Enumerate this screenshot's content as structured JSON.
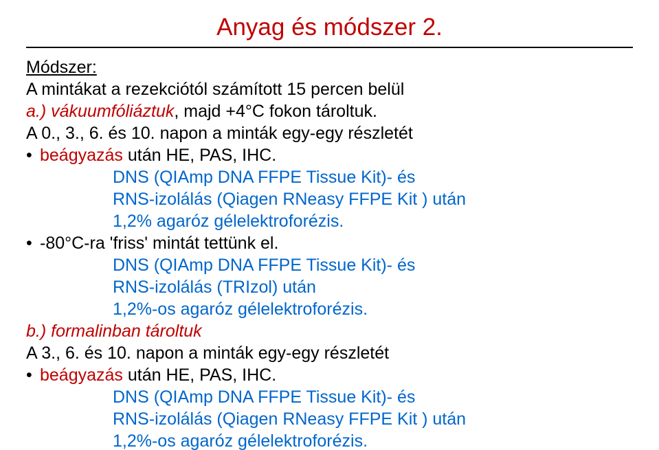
{
  "colors": {
    "accent": "#c00000",
    "link": "#0066cc",
    "text": "#000000",
    "background": "#ffffff",
    "rule": "#000000"
  },
  "title": "Anyag és módszer 2.",
  "section_header": "Módszer:",
  "p1": "A mintákat a rezekciótól számított 15 percen belül",
  "p2_a": "a.) vákuumfóliáztuk",
  "p2_b": ", majd +4°C fokon tároltuk.",
  "p3": "A 0., 3., 6. és 10. napon a minták egy-egy részletét",
  "b1_red": "beágyazás",
  "b1_rest": " után HE, PAS, IHC.",
  "sub1_l1": "DNS (QIAmp DNA FFPE Tissue Kit)- és",
  "sub1_l2": "RNS-izolálás (Qiagen RNeasy FFPE Kit ) után",
  "sub1_l3": "1,2% agaróz gélelektroforézis.",
  "b2": "-80°C-ra 'friss' mintát tettünk el.",
  "sub2_l1": "DNS (QIAmp DNA FFPE Tissue Kit)- és",
  "sub2_l2": "RNS-izolálás (TRIzol) után",
  "sub2_l3": "1,2%-os agaróz gélelektroforézis.",
  "p4_a": "b.) formalinban tároltuk",
  "p5": "A 3., 6. és 10. napon a minták egy-egy részletét",
  "b3_red": "beágyazás",
  "b3_rest": " után HE, PAS, IHC.",
  "sub3_l1": "DNS (QIAmp DNA FFPE Tissue Kit)- és",
  "sub3_l2": "RNS-izolálás (Qiagen RNeasy FFPE Kit ) után",
  "sub3_l3": "1,2%-os agaróz gélelektroforézis."
}
